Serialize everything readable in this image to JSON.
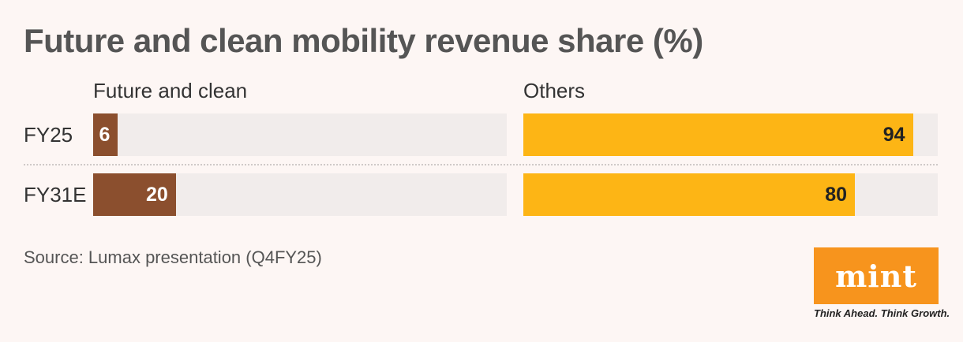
{
  "chart_data": {
    "type": "bar",
    "orientation": "horizontal",
    "title": "Future and clean mobility revenue share (%)",
    "categories": [
      "FY25",
      "FY31E"
    ],
    "series": [
      {
        "name": "Future and clean",
        "values": [
          6,
          20
        ],
        "color": "#8b4f2e"
      },
      {
        "name": "Others",
        "values": [
          94,
          80
        ],
        "color": "#fdb515"
      }
    ],
    "xlim": [
      0,
      100
    ],
    "grid": false,
    "legend": "none",
    "track_color": "#f1eceb"
  },
  "source": "Source: Lumax presentation (Q4FY25)",
  "logo": {
    "text": "mint",
    "tagline": "Think Ahead. Think Growth.",
    "color": "#f7941d"
  }
}
